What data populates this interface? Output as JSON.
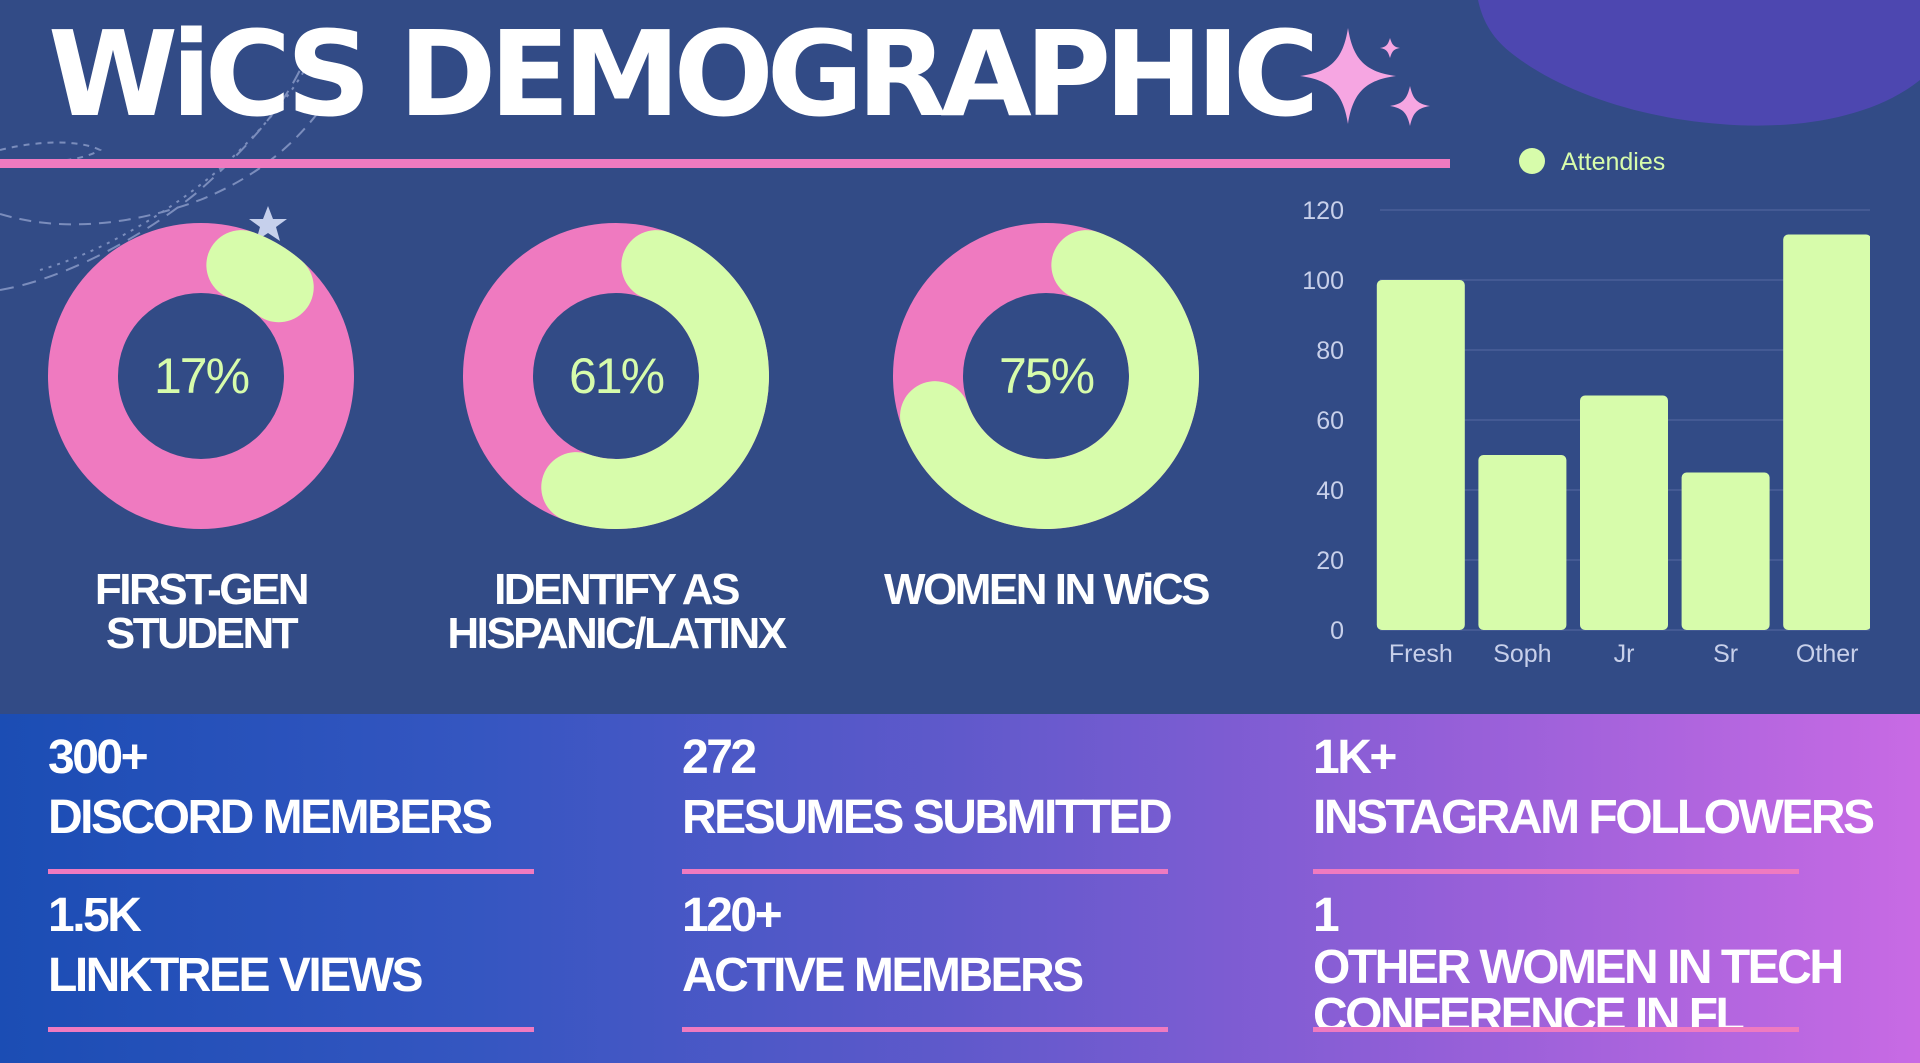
{
  "title": "WiCS DEMOGRAPHIC",
  "colors": {
    "background": "#324b86",
    "accent_pink": "#ef7ac0",
    "accent_green": "#d7fcab",
    "sparkle": "#f6a6e2",
    "blob": "#4d47b0",
    "bottom_gradient": [
      "#1b4db4",
      "#c86ae4"
    ]
  },
  "donuts": [
    {
      "id": "first-gen",
      "percent": 17,
      "display": "17%",
      "label_lines": [
        "FIRST-GEN",
        "STUDENT"
      ]
    },
    {
      "id": "hispanic",
      "percent": 61,
      "display": "61%",
      "label_lines": [
        "IDENTIFY AS",
        "HISPANIC/LATINX"
      ]
    },
    {
      "id": "women",
      "percent": 75,
      "display": "75%",
      "label_lines": [
        "WOMEN IN WiCS"
      ]
    }
  ],
  "chart_data": {
    "type": "bar",
    "categories": [
      "Fresh",
      "Soph",
      "Jr",
      "Sr",
      "Other"
    ],
    "series": [
      {
        "name": "Attendies",
        "values": [
          100,
          50,
          67,
          45,
          113
        ]
      }
    ],
    "title": "",
    "xlabel": "",
    "ylabel": "",
    "ylim": [
      0,
      120
    ],
    "yticks": [
      0,
      20,
      40,
      60,
      80,
      100,
      120
    ],
    "grid": true,
    "legend": "top-center",
    "bar_color": "#d7fcab"
  },
  "stats": [
    {
      "number": "300+",
      "label": "DISCORD MEMBERS"
    },
    {
      "number": "272",
      "label": "RESUMES SUBMITTED"
    },
    {
      "number": "1K+",
      "label": "INSTAGRAM FOLLOWERS"
    },
    {
      "number": "1.5K",
      "label": "LINKTREE VIEWS"
    },
    {
      "number": "120+",
      "label": "ACTIVE MEMBERS"
    },
    {
      "number": "1",
      "label": "OTHER WOMEN IN TECH CONFERENCE IN FL"
    }
  ]
}
